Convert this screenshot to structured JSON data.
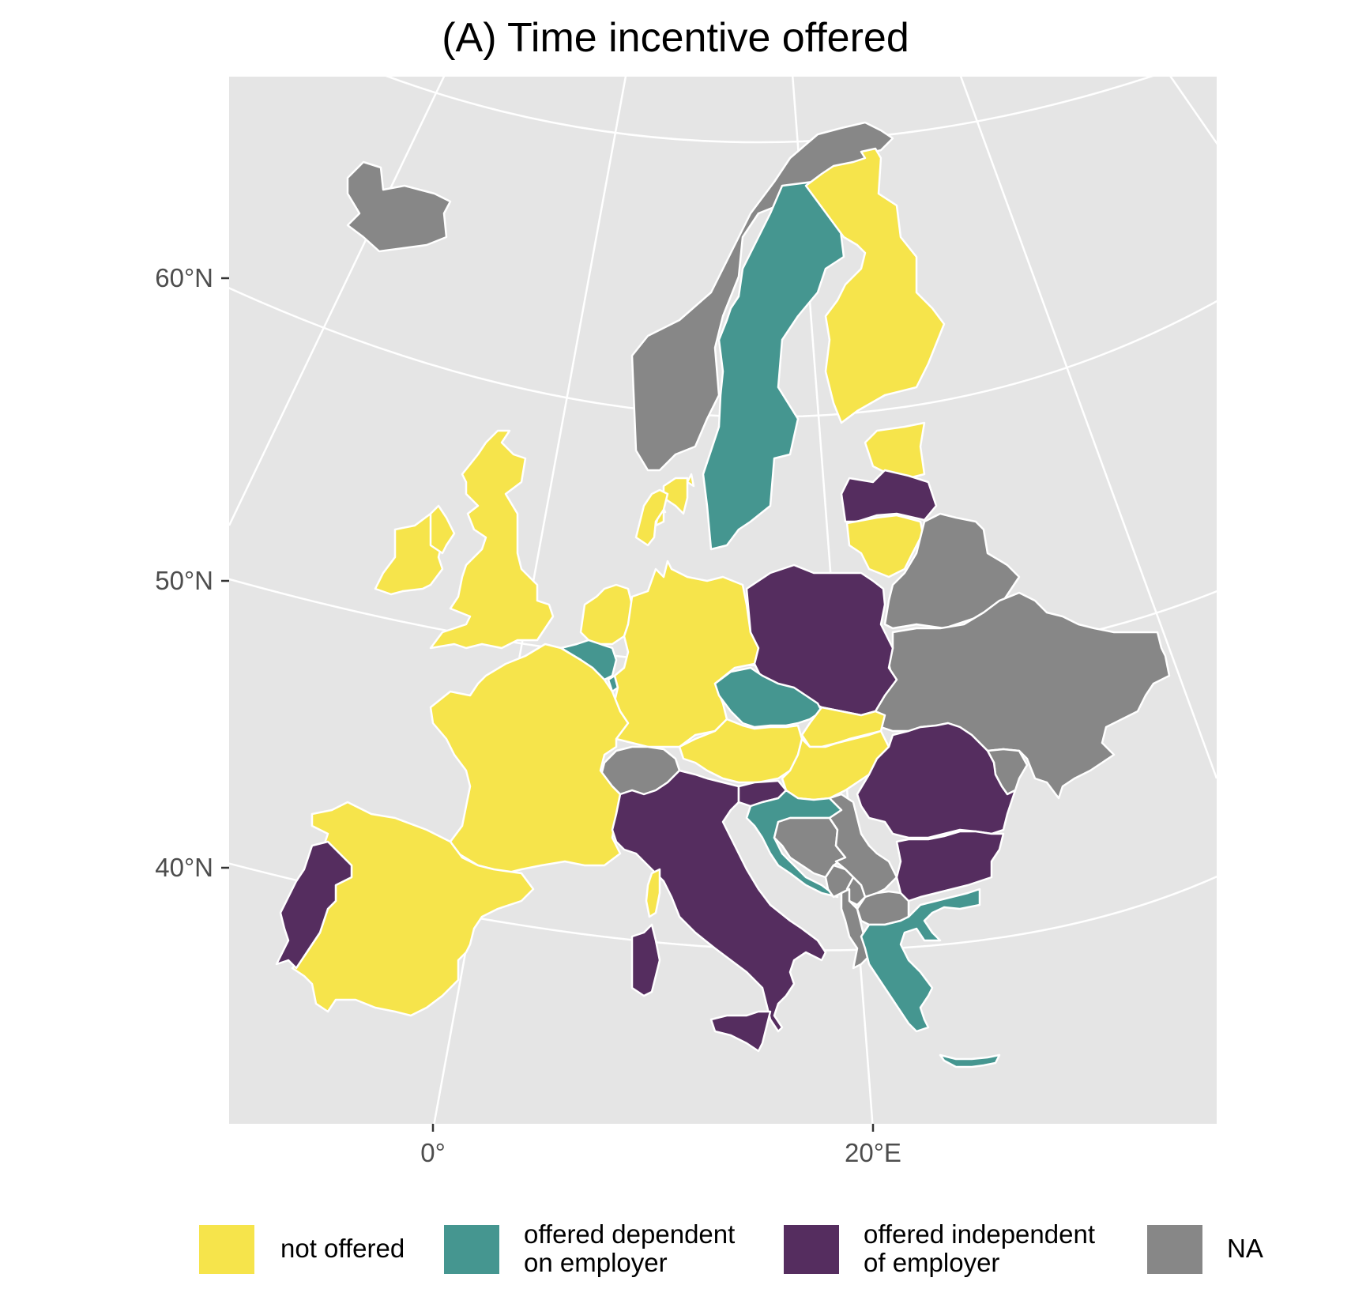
{
  "title": "(A) Time incentive offered",
  "axes": {
    "y_ticks": [
      "60°N",
      "50°N",
      "40°N"
    ],
    "x_ticks": [
      "0°",
      "20°E"
    ]
  },
  "colors": {
    "not_offered": "#F6E44B",
    "dependent": "#459690",
    "independent": "#552D5F",
    "na": "#878787",
    "panel": "#E5E5E5",
    "grid": "#FFFFFF"
  },
  "legend": [
    {
      "key": "not_offered",
      "label": "not offered"
    },
    {
      "key": "dependent",
      "label": "offered dependent\non employer"
    },
    {
      "key": "independent",
      "label": "offered independent\nof employer"
    },
    {
      "key": "na",
      "label": "NA"
    }
  ],
  "countries": [
    {
      "name": "Iceland",
      "status": "na"
    },
    {
      "name": "Norway",
      "status": "na"
    },
    {
      "name": "Sweden",
      "status": "dependent"
    },
    {
      "name": "Finland",
      "status": "not_offered"
    },
    {
      "name": "Estonia",
      "status": "not_offered"
    },
    {
      "name": "Latvia",
      "status": "independent"
    },
    {
      "name": "Lithuania",
      "status": "not_offered"
    },
    {
      "name": "Belarus",
      "status": "na"
    },
    {
      "name": "Ukraine",
      "status": "na"
    },
    {
      "name": "Moldova",
      "status": "na"
    },
    {
      "name": "Ireland",
      "status": "not_offered"
    },
    {
      "name": "United Kingdom",
      "status": "not_offered"
    },
    {
      "name": "Denmark",
      "status": "not_offered"
    },
    {
      "name": "Netherlands",
      "status": "not_offered"
    },
    {
      "name": "Belgium",
      "status": "dependent"
    },
    {
      "name": "Luxembourg",
      "status": "dependent"
    },
    {
      "name": "Germany",
      "status": "not_offered"
    },
    {
      "name": "Poland",
      "status": "independent"
    },
    {
      "name": "Czechia",
      "status": "dependent"
    },
    {
      "name": "Slovakia",
      "status": "not_offered"
    },
    {
      "name": "Austria",
      "status": "not_offered"
    },
    {
      "name": "Hungary",
      "status": "not_offered"
    },
    {
      "name": "Switzerland",
      "status": "na"
    },
    {
      "name": "France",
      "status": "not_offered"
    },
    {
      "name": "Spain",
      "status": "not_offered"
    },
    {
      "name": "Portugal",
      "status": "independent"
    },
    {
      "name": "Italy",
      "status": "independent"
    },
    {
      "name": "Sicily",
      "status": "independent"
    },
    {
      "name": "Sardinia",
      "status": "independent"
    },
    {
      "name": "Corsica",
      "status": "not_offered"
    },
    {
      "name": "Slovenia",
      "status": "independent"
    },
    {
      "name": "Croatia",
      "status": "dependent"
    },
    {
      "name": "Bosnia and Herzegovina",
      "status": "na"
    },
    {
      "name": "Serbia",
      "status": "na"
    },
    {
      "name": "Montenegro",
      "status": "na"
    },
    {
      "name": "Kosovo",
      "status": "na"
    },
    {
      "name": "Albania",
      "status": "na"
    },
    {
      "name": "North Macedonia",
      "status": "na"
    },
    {
      "name": "Romania",
      "status": "independent"
    },
    {
      "name": "Bulgaria",
      "status": "independent"
    },
    {
      "name": "Greece",
      "status": "dependent"
    },
    {
      "name": "Crete",
      "status": "dependent"
    }
  ]
}
